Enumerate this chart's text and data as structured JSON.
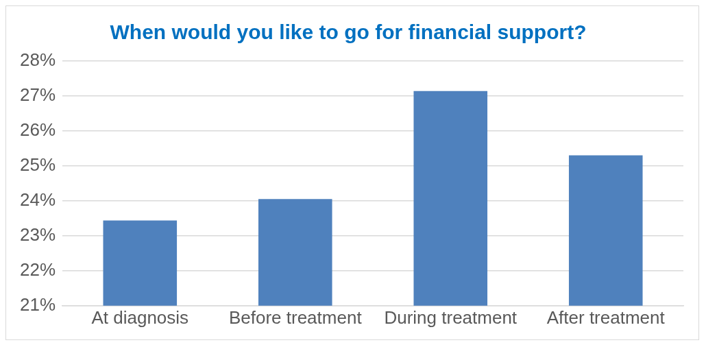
{
  "chart_data": {
    "type": "bar",
    "title": "When would you like to go for financial support?",
    "categories": [
      "At diagnosis",
      "Before treatment",
      "During treatment",
      "After treatment"
    ],
    "values": [
      23.44,
      24.05,
      27.14,
      25.3
    ],
    "color": "#4f81bd",
    "ylim": [
      21,
      28
    ],
    "yticks": [
      {
        "value": 21,
        "label": "21%"
      },
      {
        "value": 22,
        "label": "22%"
      },
      {
        "value": 23,
        "label": "23%"
      },
      {
        "value": 24,
        "label": "24%"
      },
      {
        "value": 25,
        "label": "25%"
      },
      {
        "value": 26,
        "label": "26%"
      },
      {
        "value": 27,
        "label": "27%"
      },
      {
        "value": 28,
        "label": "28%"
      }
    ],
    "grid": "y",
    "legend": false
  }
}
